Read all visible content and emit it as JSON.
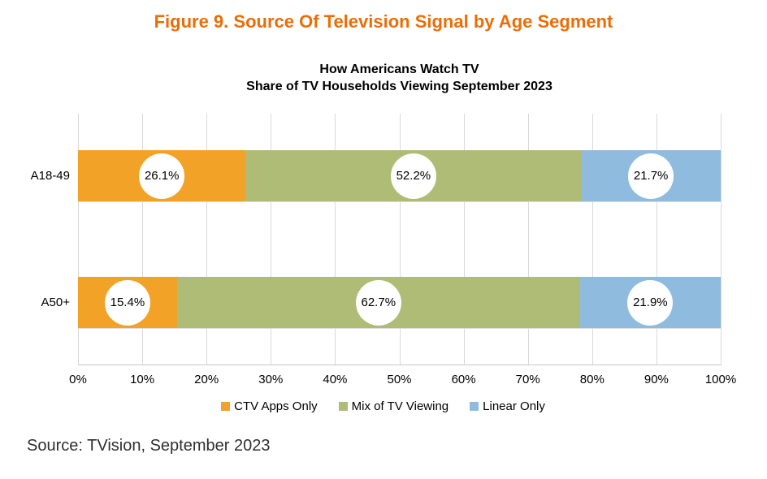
{
  "figure_title": "Figure 9. Source Of Television Signal by Age Segment",
  "chart": {
    "title_line1": "How Americans Watch TV",
    "title_line2": "Share of TV Households Viewing September 2023"
  },
  "chart_data": {
    "type": "bar",
    "orientation": "horizontal",
    "stacked": true,
    "title": "How Americans Watch TV — Share of TV Households Viewing September 2023",
    "categories": [
      "A18-49",
      "A50+"
    ],
    "series": [
      {
        "name": "CTV Apps Only",
        "color": "#F2A226",
        "values": [
          26.1,
          15.4
        ]
      },
      {
        "name": "Mix of TV Viewing",
        "color": "#AFBC75",
        "values": [
          52.2,
          62.7
        ]
      },
      {
        "name": "Linear Only",
        "color": "#8FBCDE",
        "values": [
          21.7,
          21.9
        ]
      }
    ],
    "value_labels": [
      [
        "26.1%",
        "52.2%",
        "21.7%"
      ],
      [
        "15.4%",
        "62.7%",
        "21.9%"
      ]
    ],
    "x_ticks": [
      "0%",
      "10%",
      "20%",
      "30%",
      "40%",
      "50%",
      "60%",
      "70%",
      "80%",
      "90%",
      "100%"
    ],
    "xlim": [
      0,
      100
    ],
    "grid": "vertical-major",
    "legend_position": "bottom"
  },
  "source_note": "Source: TVision, September 2023",
  "colors": {
    "figure_title": "#EC6D05",
    "ctv_apps_only": "#F2A226",
    "mix_of_tv_viewing": "#AFBC75",
    "linear_only": "#8FBCDE",
    "gridline": "#D9D9D9",
    "text": "#000000"
  }
}
